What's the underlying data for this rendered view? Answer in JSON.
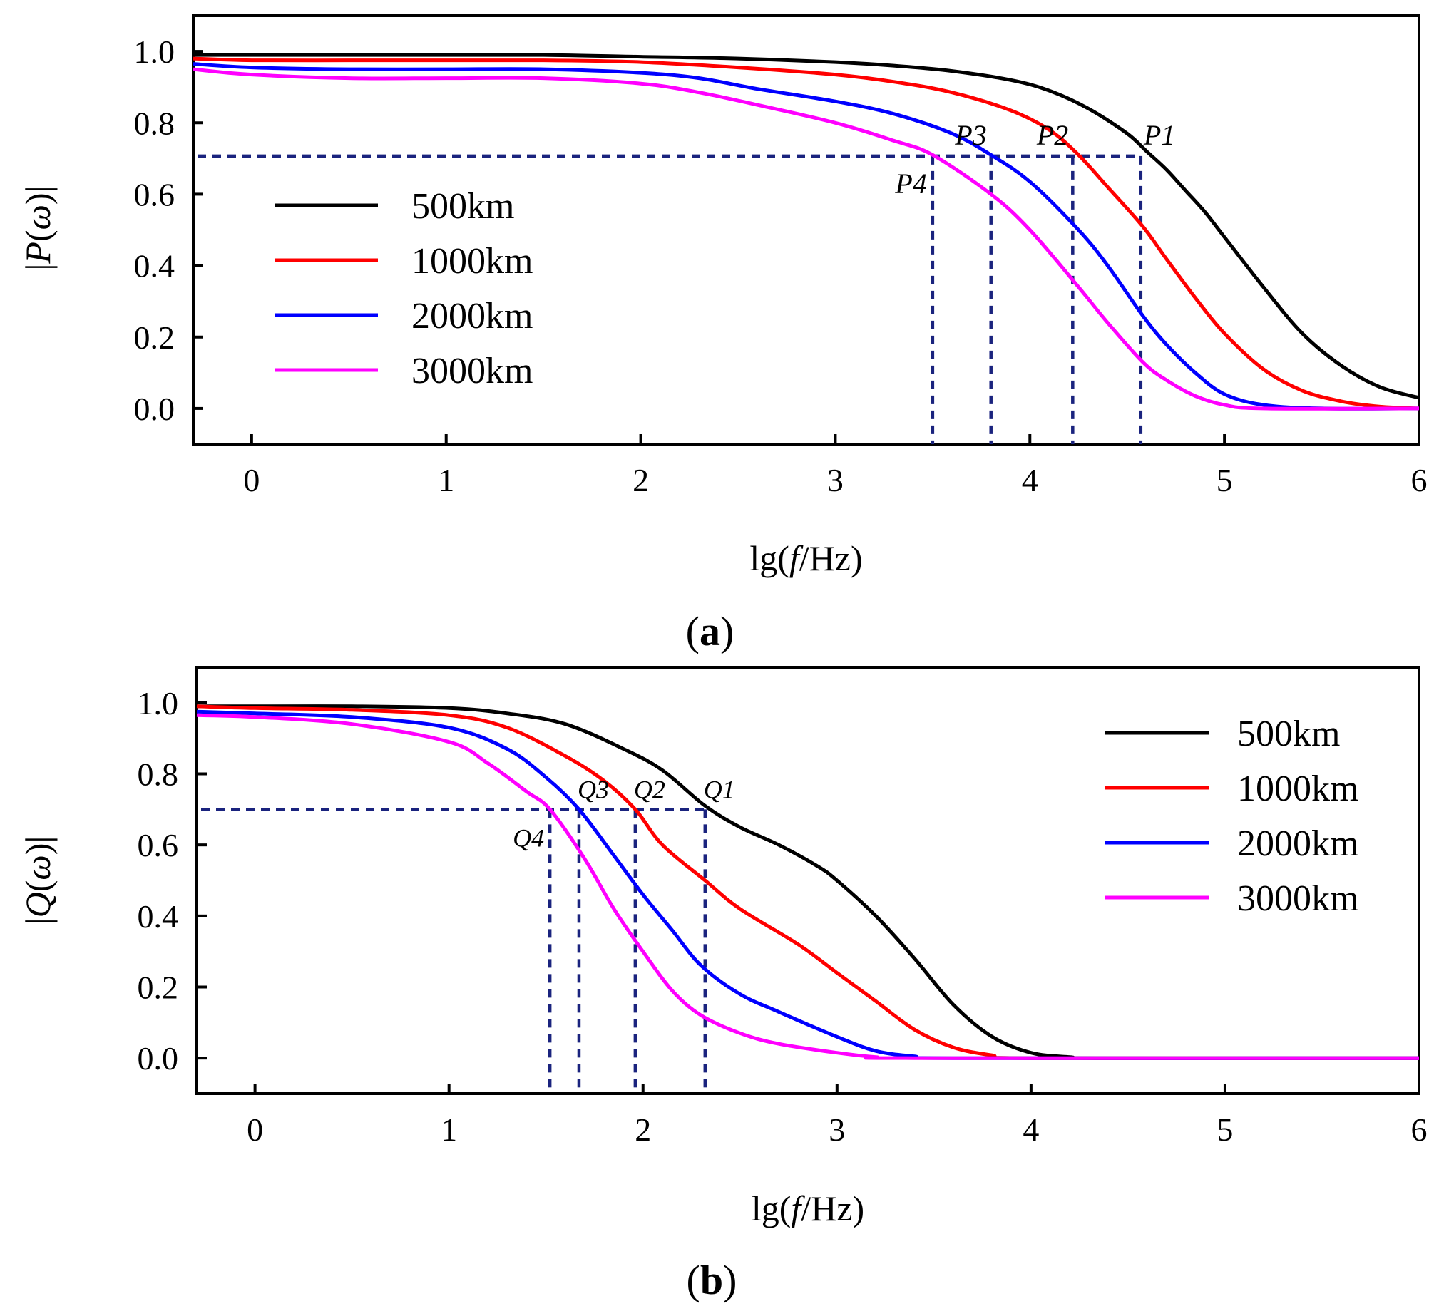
{
  "chart_data": [
    {
      "type": "line",
      "panel_label": "a",
      "ylabel": {
        "bar_left": "|",
        "func": "P",
        "open": "(",
        "var": "ω",
        "close": ")",
        "bar_right": "|"
      },
      "xlabel": {
        "prefix": "lg(",
        "var": "f",
        "suffix": "/Hz)"
      },
      "xlim": [
        -0.3,
        6
      ],
      "ylim": [
        -0.1,
        1.1
      ],
      "xticks": [
        0,
        1,
        2,
        3,
        4,
        5,
        6
      ],
      "xtick_labels": [
        "0",
        "1",
        "2",
        "3",
        "4",
        "5",
        "6"
      ],
      "yticks": [
        0.0,
        0.2,
        0.4,
        0.6,
        0.8,
        1.0
      ],
      "ytick_labels": [
        "0.0",
        "0.2",
        "0.4",
        "0.6",
        "0.8",
        "1.0"
      ],
      "legend_position": "center-left",
      "series": [
        {
          "name": "500km",
          "color": "#000000",
          "points": [
            [
              -0.3,
              0.99
            ],
            [
              0,
              0.99
            ],
            [
              0.5,
              0.99
            ],
            [
              1,
              0.99
            ],
            [
              1.5,
              0.99
            ],
            [
              2,
              0.985
            ],
            [
              2.5,
              0.98
            ],
            [
              3,
              0.97
            ],
            [
              3.3,
              0.96
            ],
            [
              3.6,
              0.945
            ],
            [
              3.9,
              0.92
            ],
            [
              4.1,
              0.89
            ],
            [
              4.3,
              0.84
            ],
            [
              4.5,
              0.77
            ],
            [
              4.6,
              0.72
            ],
            [
              4.7,
              0.67
            ],
            [
              4.8,
              0.61
            ],
            [
              4.9,
              0.55
            ],
            [
              5.0,
              0.48
            ],
            [
              5.2,
              0.34
            ],
            [
              5.4,
              0.21
            ],
            [
              5.6,
              0.12
            ],
            [
              5.8,
              0.06
            ],
            [
              6.0,
              0.03
            ]
          ]
        },
        {
          "name": "1000km",
          "color": "#ff0000",
          "points": [
            [
              -0.3,
              0.98
            ],
            [
              0,
              0.975
            ],
            [
              0.5,
              0.975
            ],
            [
              1,
              0.975
            ],
            [
              1.5,
              0.975
            ],
            [
              2,
              0.97
            ],
            [
              2.5,
              0.955
            ],
            [
              3,
              0.935
            ],
            [
              3.3,
              0.915
            ],
            [
              3.6,
              0.885
            ],
            [
              3.9,
              0.835
            ],
            [
              4.1,
              0.78
            ],
            [
              4.25,
              0.71
            ],
            [
              4.4,
              0.62
            ],
            [
              4.58,
              0.51
            ],
            [
              4.7,
              0.42
            ],
            [
              4.85,
              0.31
            ],
            [
              5.0,
              0.21
            ],
            [
              5.2,
              0.11
            ],
            [
              5.4,
              0.05
            ],
            [
              5.6,
              0.02
            ],
            [
              5.8,
              0.005
            ],
            [
              6.0,
              0.0
            ]
          ]
        },
        {
          "name": "2000km",
          "color": "#0000ff",
          "points": [
            [
              -0.3,
              0.965
            ],
            [
              0,
              0.955
            ],
            [
              0.5,
              0.95
            ],
            [
              1,
              0.95
            ],
            [
              1.5,
              0.95
            ],
            [
              2,
              0.94
            ],
            [
              2.3,
              0.925
            ],
            [
              2.6,
              0.895
            ],
            [
              3,
              0.86
            ],
            [
              3.3,
              0.825
            ],
            [
              3.6,
              0.77
            ],
            [
              3.8,
              0.71
            ],
            [
              4.0,
              0.635
            ],
            [
              4.25,
              0.5
            ],
            [
              4.4,
              0.4
            ],
            [
              4.58,
              0.26
            ],
            [
              4.7,
              0.18
            ],
            [
              4.85,
              0.1
            ],
            [
              5.0,
              0.04
            ],
            [
              5.2,
              0.01
            ],
            [
              5.5,
              0.0
            ],
            [
              6.0,
              0.0
            ]
          ]
        },
        {
          "name": "3000km",
          "color": "#ff00ff",
          "points": [
            [
              -0.3,
              0.95
            ],
            [
              0,
              0.935
            ],
            [
              0.5,
              0.925
            ],
            [
              1,
              0.925
            ],
            [
              1.5,
              0.925
            ],
            [
              2,
              0.91
            ],
            [
              2.3,
              0.885
            ],
            [
              2.6,
              0.85
            ],
            [
              3,
              0.8
            ],
            [
              3.3,
              0.75
            ],
            [
              3.5,
              0.71
            ],
            [
              3.8,
              0.6
            ],
            [
              4.0,
              0.5
            ],
            [
              4.25,
              0.34
            ],
            [
              4.4,
              0.24
            ],
            [
              4.58,
              0.13
            ],
            [
              4.7,
              0.08
            ],
            [
              4.85,
              0.035
            ],
            [
              5.0,
              0.01
            ],
            [
              5.2,
              0.0
            ],
            [
              6.0,
              0.0
            ]
          ]
        }
      ],
      "reference_level": 0.707,
      "markers": [
        {
          "label": "P1",
          "x": 4.57
        },
        {
          "label": "P2",
          "x": 4.22
        },
        {
          "label": "P3",
          "x": 3.8
        },
        {
          "label": "P4",
          "x": 3.5
        }
      ]
    },
    {
      "type": "line",
      "panel_label": "b",
      "ylabel": {
        "bar_left": "|",
        "func": "Q",
        "open": "(",
        "var": "ω",
        "close": ")",
        "bar_right": "|"
      },
      "xlabel": {
        "prefix": "lg(",
        "var": "f",
        "suffix": "/Hz)"
      },
      "xlim": [
        -0.3,
        6
      ],
      "ylim": [
        -0.1,
        1.1
      ],
      "xticks": [
        0,
        1,
        2,
        3,
        4,
        5,
        6
      ],
      "xtick_labels": [
        "0",
        "1",
        "2",
        "3",
        "4",
        "5",
        "6"
      ],
      "yticks": [
        0.0,
        0.2,
        0.4,
        0.6,
        0.8,
        1.0
      ],
      "ytick_labels": [
        "0.0",
        "0.2",
        "0.4",
        "0.6",
        "0.8",
        "1.0"
      ],
      "legend_position": "top-right",
      "series": [
        {
          "name": "500km",
          "color": "#000000",
          "points": [
            [
              -0.3,
              0.99
            ],
            [
              0,
              0.99
            ],
            [
              0.5,
              0.99
            ],
            [
              1,
              0.985
            ],
            [
              1.3,
              0.97
            ],
            [
              1.6,
              0.94
            ],
            [
              1.9,
              0.87
            ],
            [
              2.1,
              0.81
            ],
            [
              2.32,
              0.71
            ],
            [
              2.5,
              0.65
            ],
            [
              2.7,
              0.6
            ],
            [
              2.9,
              0.54
            ],
            [
              3.0,
              0.5
            ],
            [
              3.2,
              0.4
            ],
            [
              3.4,
              0.28
            ],
            [
              3.6,
              0.15
            ],
            [
              3.8,
              0.06
            ],
            [
              4.0,
              0.015
            ],
            [
              4.2,
              0.003
            ],
            [
              4.4,
              0.0
            ],
            [
              6.0,
              0.0
            ]
          ]
        },
        {
          "name": "1000km",
          "color": "#ff0000",
          "points": [
            [
              -0.3,
              0.99
            ],
            [
              0,
              0.985
            ],
            [
              0.5,
              0.98
            ],
            [
              1,
              0.965
            ],
            [
              1.3,
              0.93
            ],
            [
              1.6,
              0.85
            ],
            [
              1.8,
              0.78
            ],
            [
              1.96,
              0.7
            ],
            [
              2.1,
              0.6
            ],
            [
              2.32,
              0.5
            ],
            [
              2.5,
              0.42
            ],
            [
              2.8,
              0.32
            ],
            [
              3.0,
              0.24
            ],
            [
              3.2,
              0.16
            ],
            [
              3.4,
              0.08
            ],
            [
              3.6,
              0.03
            ],
            [
              3.8,
              0.008
            ],
            [
              4.0,
              0.0
            ],
            [
              6.0,
              0.0
            ]
          ]
        },
        {
          "name": "2000km",
          "color": "#0000ff",
          "points": [
            [
              -0.3,
              0.975
            ],
            [
              0,
              0.97
            ],
            [
              0.5,
              0.96
            ],
            [
              1,
              0.93
            ],
            [
              1.3,
              0.87
            ],
            [
              1.5,
              0.79
            ],
            [
              1.67,
              0.7
            ],
            [
              1.85,
              0.57
            ],
            [
              2.0,
              0.46
            ],
            [
              2.15,
              0.36
            ],
            [
              2.3,
              0.26
            ],
            [
              2.5,
              0.18
            ],
            [
              2.7,
              0.13
            ],
            [
              3.0,
              0.06
            ],
            [
              3.2,
              0.02
            ],
            [
              3.4,
              0.005
            ],
            [
              3.6,
              0.0
            ],
            [
              6.0,
              0.0
            ]
          ]
        },
        {
          "name": "3000km",
          "color": "#ff00ff",
          "points": [
            [
              -0.3,
              0.965
            ],
            [
              0,
              0.96
            ],
            [
              0.5,
              0.94
            ],
            [
              1,
              0.89
            ],
            [
              1.2,
              0.83
            ],
            [
              1.4,
              0.75
            ],
            [
              1.52,
              0.7
            ],
            [
              1.7,
              0.56
            ],
            [
              1.85,
              0.42
            ],
            [
              2.0,
              0.3
            ],
            [
              2.15,
              0.19
            ],
            [
              2.3,
              0.12
            ],
            [
              2.5,
              0.07
            ],
            [
              2.7,
              0.04
            ],
            [
              3.0,
              0.015
            ],
            [
              3.2,
              0.003
            ],
            [
              3.4,
              0.0
            ],
            [
              6.0,
              0.0
            ]
          ]
        }
      ],
      "reference_level": 0.7,
      "markers": [
        {
          "label": "Q1",
          "x": 2.32
        },
        {
          "label": "Q2",
          "x": 1.96
        },
        {
          "label": "Q3",
          "x": 1.67
        },
        {
          "label": "Q4",
          "x": 1.52
        }
      ]
    }
  ]
}
